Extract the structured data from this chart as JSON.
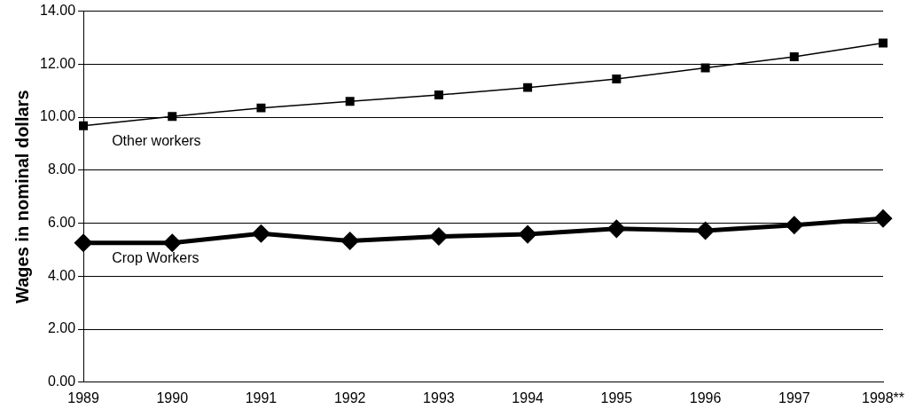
{
  "chart_data": {
    "type": "line",
    "ylabel": "Wages in nominal dollars",
    "categories": [
      "1989",
      "1990",
      "1991",
      "1992",
      "1993",
      "1994",
      "1995",
      "1996",
      "1997",
      "1998**"
    ],
    "series": [
      {
        "name": "Other workers",
        "color": "#000000",
        "marker": "square",
        "values": [
          9.68,
          10.03,
          10.35,
          10.6,
          10.84,
          11.12,
          11.44,
          11.86,
          12.28,
          12.8
        ]
      },
      {
        "name": "Crop Workers",
        "color": "#000000",
        "marker": "diamond",
        "values": [
          5.26,
          5.26,
          5.61,
          5.33,
          5.5,
          5.58,
          5.79,
          5.72,
          5.93,
          6.18
        ]
      }
    ],
    "ylim": [
      0,
      14
    ],
    "yticks": [
      {
        "value": 0,
        "label": "0.00"
      },
      {
        "value": 2,
        "label": "2.00"
      },
      {
        "value": 4,
        "label": "4.00"
      },
      {
        "value": 6,
        "label": "6.00"
      },
      {
        "value": 8,
        "label": "8.00"
      },
      {
        "value": 10,
        "label": "10.00"
      },
      {
        "value": 12,
        "label": "12.00"
      },
      {
        "value": 14,
        "label": "14.00"
      }
    ],
    "grid": "y",
    "legend": false,
    "line_style": "solid"
  }
}
